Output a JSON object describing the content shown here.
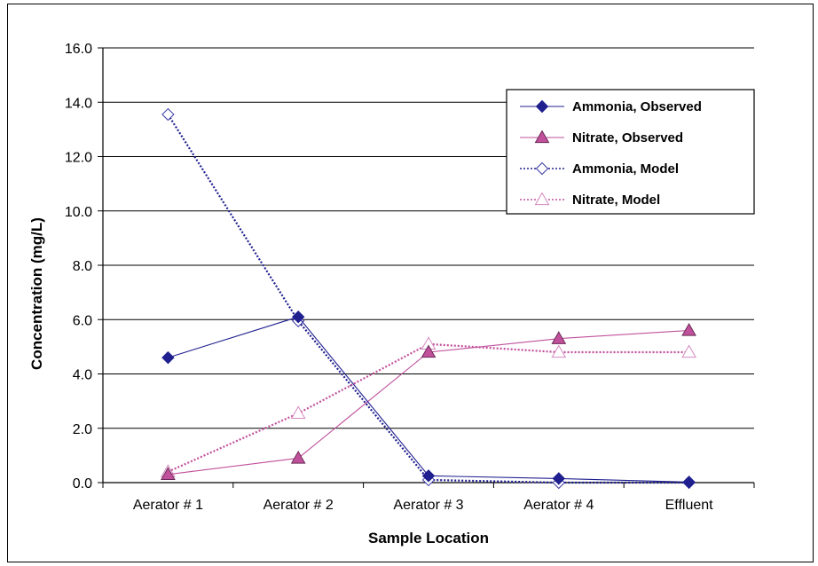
{
  "chart_data": {
    "type": "line",
    "title": "",
    "xlabel": "Sample Location",
    "ylabel": "Concentration (mg/L)",
    "categories": [
      "Aerator # 1",
      "Aerator # 2",
      "Aerator # 3",
      "Aerator # 4",
      "Effluent"
    ],
    "ylim": [
      0,
      16
    ],
    "yticks": [
      "0.0",
      "2.0",
      "4.0",
      "6.0",
      "8.0",
      "10.0",
      "12.0",
      "14.0",
      "16.0"
    ],
    "grid": true,
    "legend_position": "top-right",
    "series": [
      {
        "name": "Ammonia, Observed",
        "values": [
          4.6,
          6.1,
          0.25,
          0.15,
          0.02
        ],
        "color": "#1f1f8f",
        "marker": "diamond-filled",
        "line": "solid"
      },
      {
        "name": "Nitrate, Observed",
        "values": [
          0.3,
          0.9,
          4.8,
          5.3,
          5.6
        ],
        "color": "#c0509b",
        "marker": "triangle-filled",
        "line": "solid"
      },
      {
        "name": "Ammonia, Model",
        "values": [
          13.55,
          5.95,
          0.1,
          0.0,
          0.0
        ],
        "color": "#1f1f8f",
        "marker": "diamond-open",
        "line": "dotted"
      },
      {
        "name": "Nitrate, Model",
        "values": [
          0.4,
          2.55,
          5.1,
          4.8,
          4.8
        ],
        "color": "#c0509b",
        "marker": "triangle-open",
        "line": "dotted"
      }
    ]
  }
}
